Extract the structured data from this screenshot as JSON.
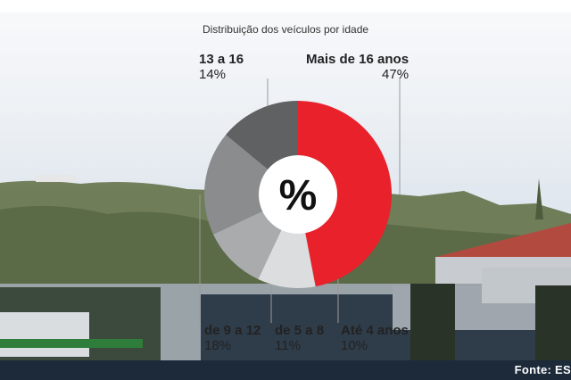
{
  "colors": {
    "red": "#e8212b",
    "dark": "#5f6163",
    "mid": "#8a8c8e",
    "light": "#a9abad",
    "pale": "#dcdddf",
    "center": "#ffffff"
  },
  "center_symbol": "%",
  "source": "Fonte: ES",
  "chart_data": {
    "type": "pie",
    "title": "Distribuição dos veículos por idade",
    "slices": [
      {
        "label": "Mais de 16 anos",
        "value": 47,
        "display": "47%"
      },
      {
        "label": "Até 4 anos",
        "value": 10,
        "display": "10%"
      },
      {
        "label": "de 5 a 8",
        "value": 11,
        "display": "11%"
      },
      {
        "label": "de 9 a 12",
        "value": 18,
        "display": "18%"
      },
      {
        "label": "13 a 16",
        "value": 14,
        "display": "14%"
      }
    ]
  }
}
